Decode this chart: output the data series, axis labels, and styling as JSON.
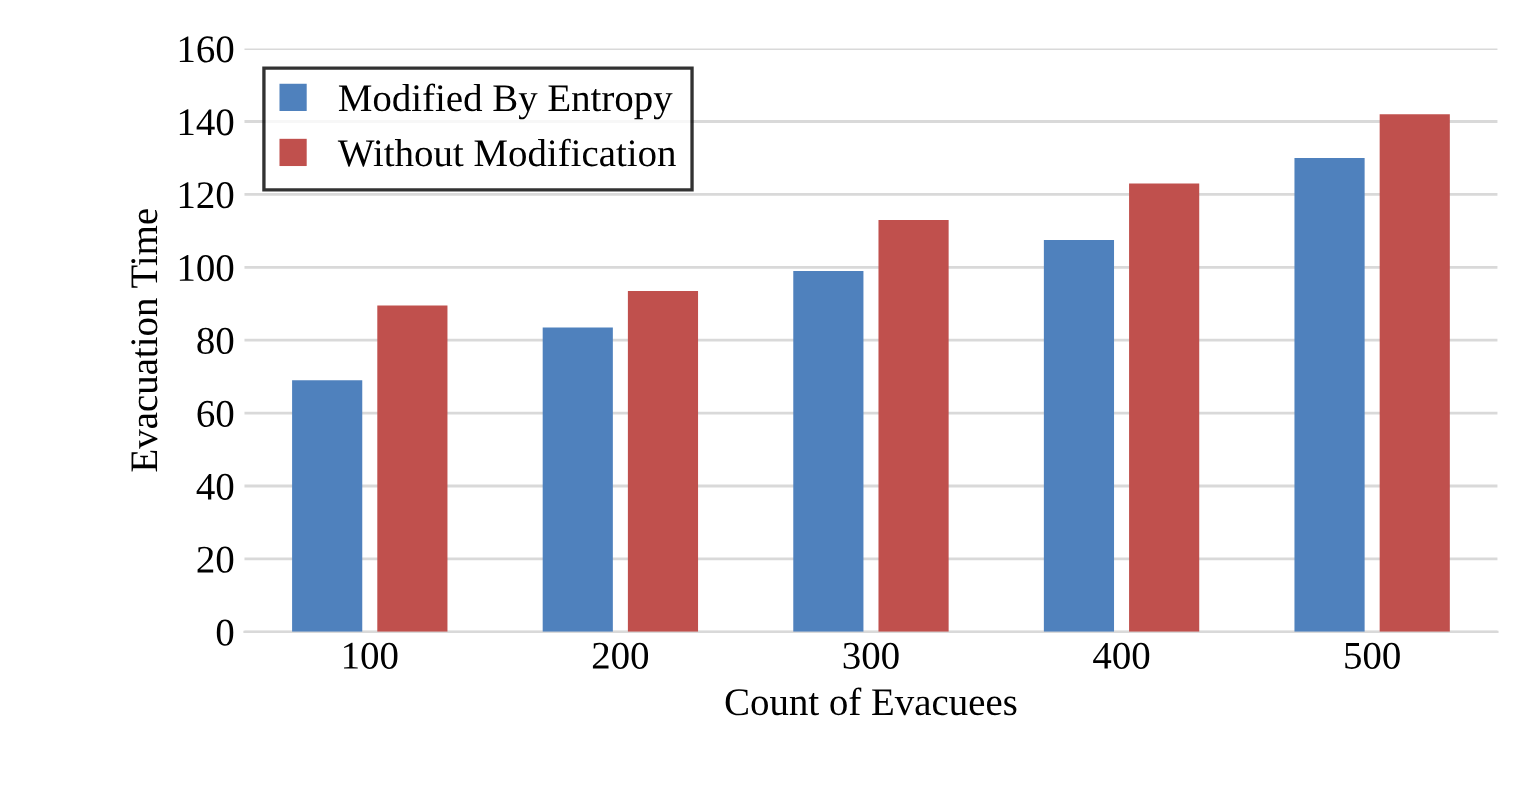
{
  "chart_data": {
    "type": "bar",
    "xlabel": "Count of Evacuees",
    "ylabel": "Evacuation Time",
    "categories": [
      "100",
      "200",
      "300",
      "400",
      "500"
    ],
    "series": [
      {
        "name": "Modified By Entropy",
        "color": "#4f81bd",
        "values": [
          69,
          83.5,
          99,
          107.5,
          130
        ]
      },
      {
        "name": "Without Modification",
        "color": "#c0504d",
        "values": [
          89.5,
          93.5,
          113,
          123,
          142
        ]
      }
    ],
    "ylim": [
      0,
      160
    ],
    "yticks": [
      0,
      20,
      40,
      60,
      80,
      100,
      120,
      140,
      160
    ],
    "grid": "y",
    "legend": "top left"
  }
}
